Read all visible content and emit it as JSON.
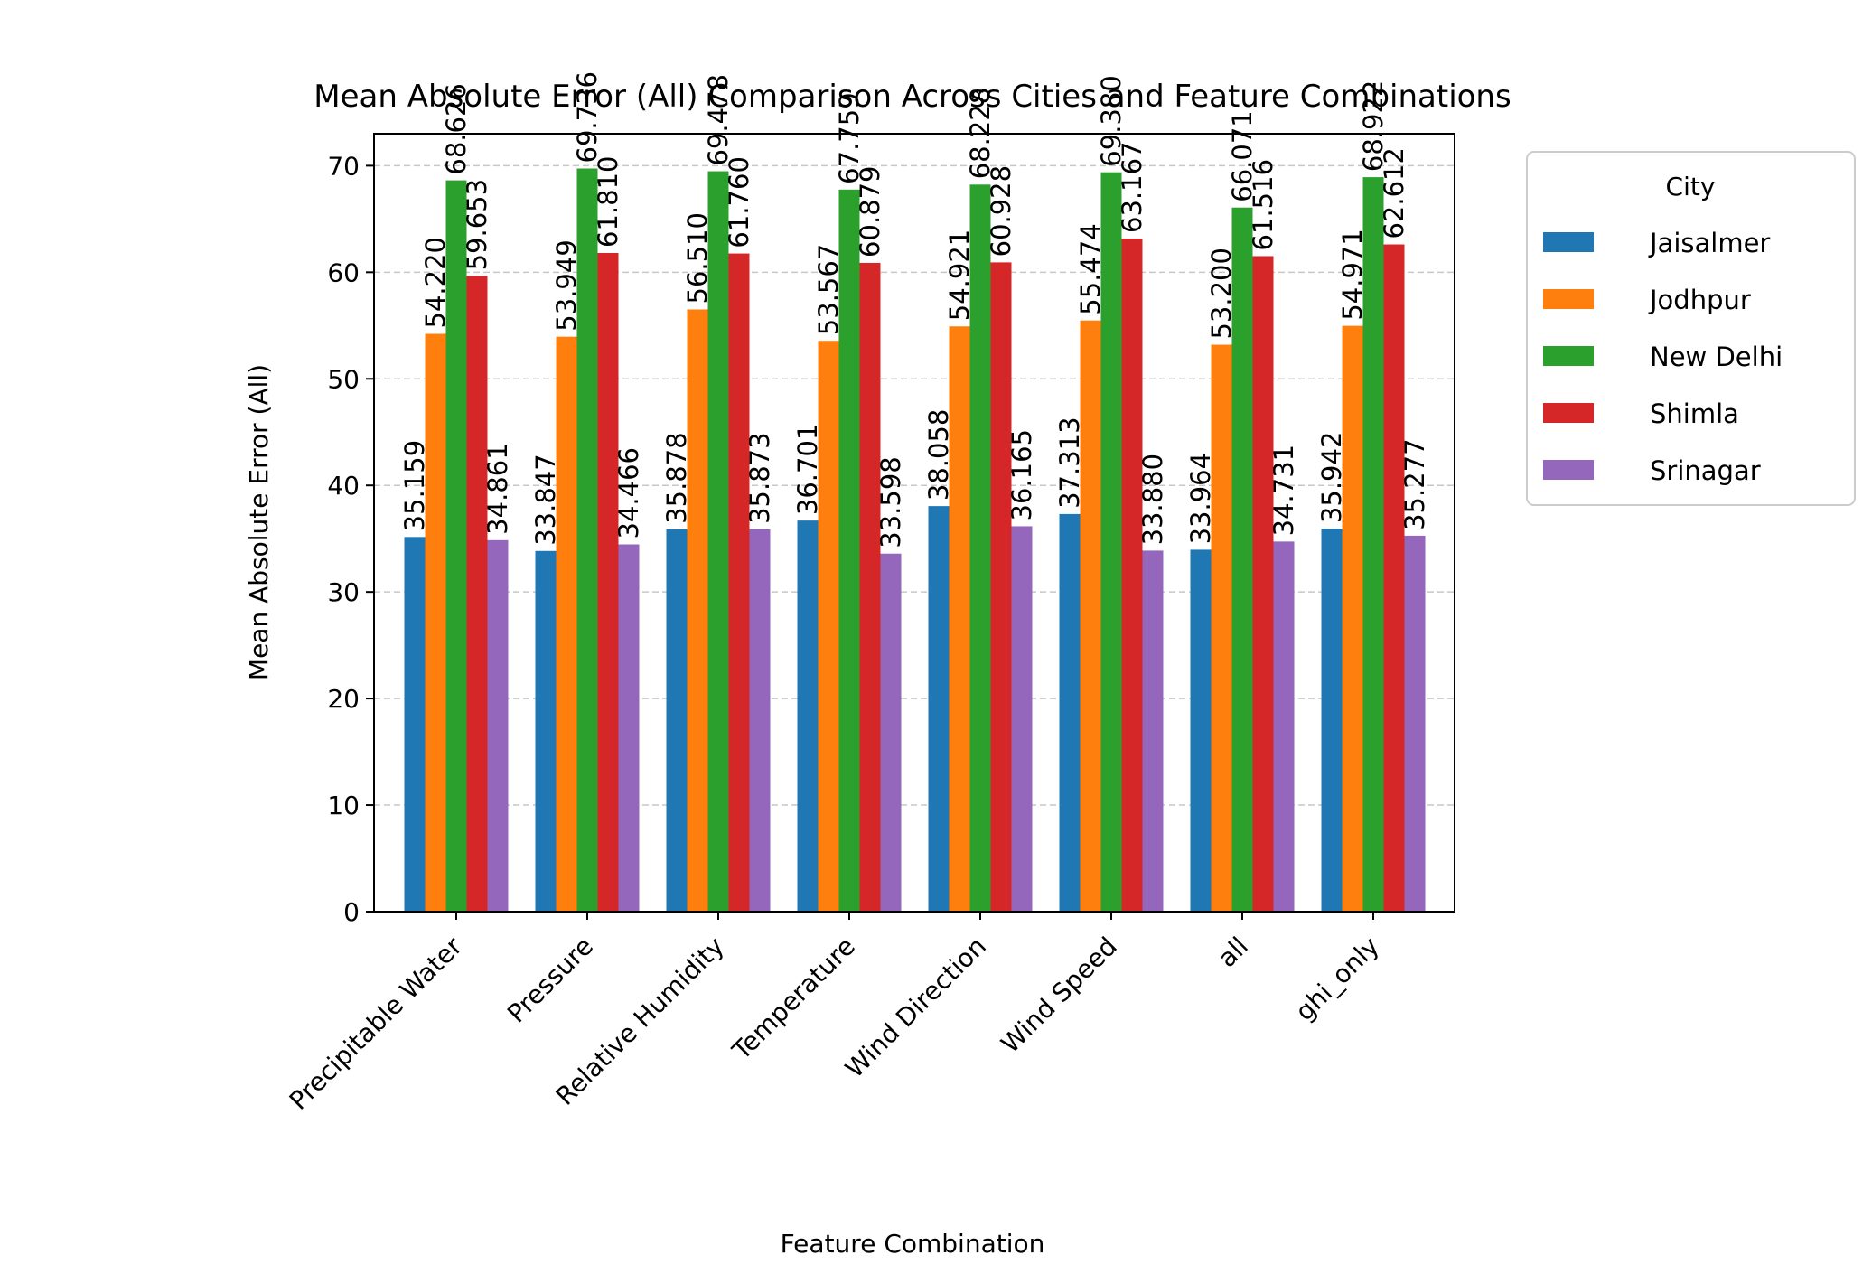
{
  "chart_data": {
    "type": "bar",
    "title": "Mean Absolute Error (All) Comparison Across Cities and Feature Combinations",
    "xlabel": "Feature Combination",
    "ylabel": "Mean Absolute Error (All)",
    "ylim": [
      0,
      73
    ],
    "yticks": [
      0,
      10,
      20,
      30,
      40,
      50,
      60,
      70
    ],
    "grid": "y-dashed",
    "legend_title": "City",
    "legend_position": "outside-right",
    "categories": [
      "Precipitable Water",
      "Pressure",
      "Relative Humidity",
      "Temperature",
      "Wind Direction",
      "Wind Speed",
      "all",
      "ghi_only"
    ],
    "series": [
      {
        "name": "Jaisalmer",
        "color": "#1f77b4",
        "values": [
          35.159,
          33.847,
          35.878,
          36.701,
          38.058,
          37.313,
          33.964,
          35.942
        ],
        "labels": [
          "35.159",
          "33.847",
          "35.878",
          "36.701",
          "38.058",
          "37.313",
          "33.964",
          "35.942"
        ]
      },
      {
        "name": "Jodhpur",
        "color": "#ff7f0e",
        "values": [
          54.22,
          53.949,
          56.51,
          53.567,
          54.921,
          55.474,
          53.2,
          54.971
        ],
        "labels": [
          "54.220",
          "53.949",
          "56.510",
          "53.567",
          "54.921",
          "55.474",
          "53.200",
          "54.971"
        ]
      },
      {
        "name": "New Delhi",
        "color": "#2ca02c",
        "values": [
          68.626,
          69.736,
          69.478,
          67.759,
          68.228,
          69.38,
          66.071,
          68.922
        ],
        "labels": [
          "68.626",
          "69.736",
          "69.478",
          "67.759",
          "68.228",
          "69.380",
          "66.071",
          "68.922"
        ]
      },
      {
        "name": "Shimla",
        "color": "#d62728",
        "values": [
          59.653,
          61.81,
          61.76,
          60.879,
          60.928,
          63.167,
          61.516,
          62.612
        ],
        "labels": [
          "59.653",
          "61.810",
          "61.760",
          "60.879",
          "60.928",
          "63.167",
          "61.516",
          "62.612"
        ]
      },
      {
        "name": "Srinagar",
        "color": "#9467bd",
        "values": [
          34.861,
          34.466,
          35.873,
          33.598,
          36.165,
          33.88,
          34.731,
          35.277
        ],
        "labels": [
          "34.861",
          "34.466",
          "35.873",
          "33.598",
          "36.165",
          "33.880",
          "34.731",
          "35.277"
        ]
      }
    ]
  }
}
